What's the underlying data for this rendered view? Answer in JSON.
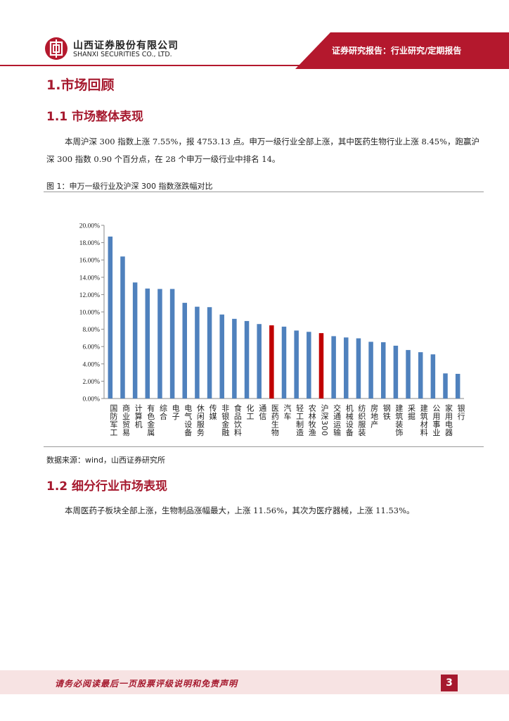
{
  "header": {
    "company_cn": "山西证券股份有限公司",
    "company_en": "SHANXI SECURITIES CO., LTD.",
    "report_type": "证券研究报告：行业研究/定期报告",
    "logo_icon": "shanxi-securities-logo-icon",
    "accent_color": "#a6192e"
  },
  "section": {
    "title": "1.市场回顾",
    "sub1_title": "1.1 市场整体表现",
    "para1": "本周沪深 300 指数上涨 7.55%，报 4753.13 点。申万一级行业全部上涨，其中医药生物行业上涨 8.45%，跑赢沪深 300 指数 0.90 个百分点，在 28 个申万一级行业中排名 14。",
    "figure_title": "图 1：申万一级行业及沪深 300 指数涨跌幅对比",
    "source": "数据来源：wind，山西证券研究所",
    "sub2_title": "1.2 细分行业市场表现",
    "para2": "本周医药子板块全部上涨，生物制品涨幅最大，上涨 11.56%，其次为医疗器械，上涨 11.53%。"
  },
  "chart_data": {
    "type": "bar",
    "title": "",
    "xlabel": "",
    "ylabel": "",
    "ylim": [
      0,
      20
    ],
    "y_ticks": [
      "0.00%",
      "2.00%",
      "4.00%",
      "6.00%",
      "8.00%",
      "10.00%",
      "12.00%",
      "14.00%",
      "16.00%",
      "18.00%",
      "20.00%"
    ],
    "categories": [
      "国防军工",
      "商业贸易",
      "计算机",
      "有色金属",
      "综合",
      "电子",
      "电气设备",
      "休闲服务",
      "传媒",
      "非银金融",
      "食品饮料",
      "化工",
      "通信",
      "医药生物",
      "汽车",
      "轻工制造",
      "农林牧渔",
      "沪深300",
      "交通运输",
      "机械设备",
      "纺织服装",
      "房地产",
      "钢铁",
      "建筑装饰",
      "采掘",
      "建筑材料",
      "公用事业",
      "家用电器",
      "银行"
    ],
    "values": [
      18.7,
      16.4,
      13.4,
      12.7,
      12.65,
      12.65,
      11.05,
      10.6,
      10.55,
      9.7,
      9.2,
      8.95,
      8.6,
      8.45,
      8.3,
      7.85,
      7.7,
      7.55,
      7.2,
      7.05,
      6.95,
      6.55,
      6.5,
      6.1,
      5.6,
      5.35,
      5.1,
      2.9,
      2.85
    ],
    "bar_color": "#4f81bd",
    "highlight_color": "#c00000",
    "highlight_categories": [
      "医药生物",
      "沪深300"
    ],
    "grid": false,
    "legend": "none"
  },
  "footer": {
    "disclaimer": "请务必阅读最后一页股票评级说明和免责声明",
    "page_number": "3"
  }
}
